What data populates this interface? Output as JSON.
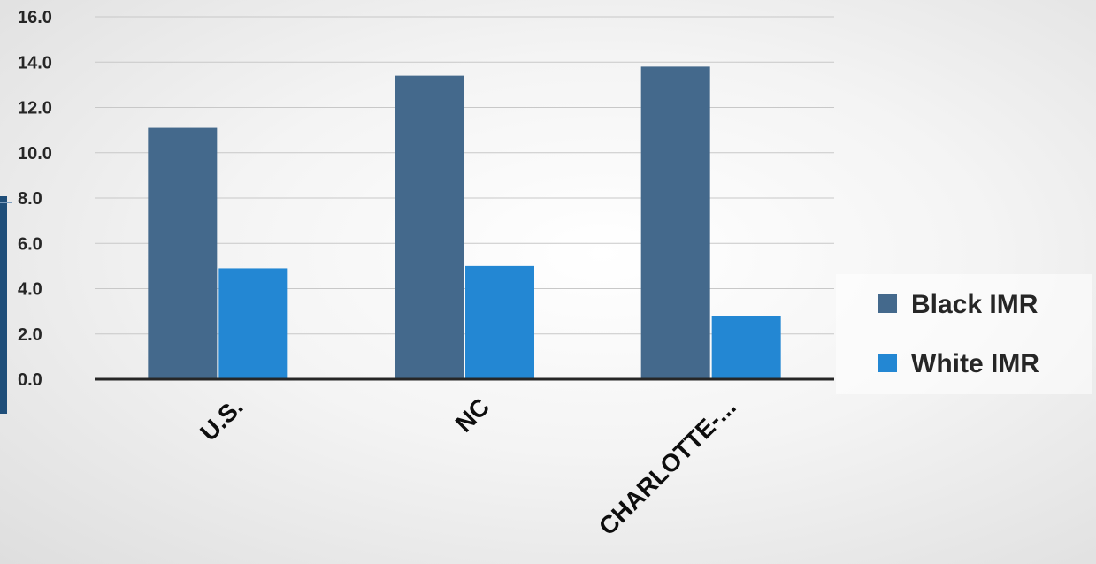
{
  "chart_data": {
    "type": "bar",
    "title": "",
    "xlabel": "",
    "ylabel": "",
    "categories": [
      "U.S.",
      "NC",
      "CHARLOTTE-..."
    ],
    "series": [
      {
        "name": "Black IMR",
        "values": [
          11.1,
          13.4,
          13.8
        ],
        "color": "#44698c"
      },
      {
        "name": "White IMR",
        "values": [
          4.9,
          5.0,
          2.8
        ],
        "color": "#2387d3"
      }
    ],
    "ylim": [
      0,
      16
    ],
    "yticks": [
      "0.0",
      "2.0",
      "4.0",
      "6.0",
      "8.0",
      "10.0",
      "12.0",
      "14.0",
      "16.0"
    ],
    "grid": true,
    "legend_position": "right"
  }
}
